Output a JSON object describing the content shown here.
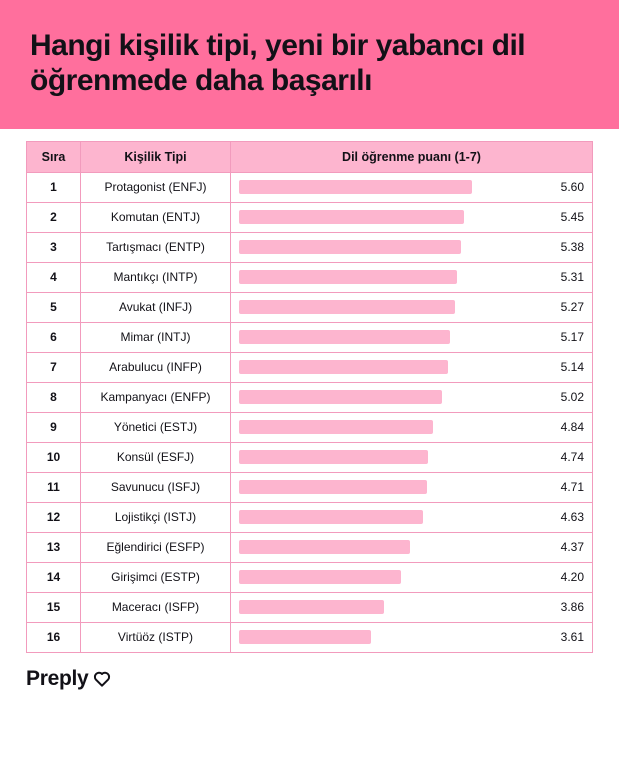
{
  "hero": {
    "title": "Hangi kişilik tipi, yeni bir yabancı dil öğrenmede daha başarılı",
    "background_color": "#ff6f9d",
    "text_color": "#121117"
  },
  "table": {
    "header_bg": "#fdb5cf",
    "border_color": "#f29bbd",
    "bar_color": "#fdb5cf",
    "columns": {
      "rank": "Sıra",
      "type": "Kişilik Tipi",
      "score": "Dil öğrenme puanı (1-7)"
    },
    "score_min": 1,
    "score_max": 7,
    "bar_max_pct": 88,
    "rows": [
      {
        "rank": "1",
        "type": "Protagonist (ENFJ)",
        "score": "5.60",
        "value": 5.6
      },
      {
        "rank": "2",
        "type": "Komutan (ENTJ)",
        "score": "5.45",
        "value": 5.45
      },
      {
        "rank": "3",
        "type": "Tartışmacı (ENTP)",
        "score": "5.38",
        "value": 5.38
      },
      {
        "rank": "4",
        "type": "Mantıkçı (INTP)",
        "score": "5.31",
        "value": 5.31
      },
      {
        "rank": "5",
        "type": "Avukat (INFJ)",
        "score": "5.27",
        "value": 5.27
      },
      {
        "rank": "6",
        "type": "Mimar (INTJ)",
        "score": "5.17",
        "value": 5.17
      },
      {
        "rank": "7",
        "type": "Arabulucu (INFP)",
        "score": "5.14",
        "value": 5.14
      },
      {
        "rank": "8",
        "type": "Kampanyacı (ENFP)",
        "score": "5.02",
        "value": 5.02
      },
      {
        "rank": "9",
        "type": "Yönetici (ESTJ)",
        "score": "4.84",
        "value": 4.84
      },
      {
        "rank": "10",
        "type": "Konsül (ESFJ)",
        "score": "4.74",
        "value": 4.74
      },
      {
        "rank": "11",
        "type": "Savunucu (ISFJ)",
        "score": "4.71",
        "value": 4.71
      },
      {
        "rank": "12",
        "type": "Lojistikçi (ISTJ)",
        "score": "4.63",
        "value": 4.63
      },
      {
        "rank": "13",
        "type": "Eğlendirici (ESFP)",
        "score": "4.37",
        "value": 4.37
      },
      {
        "rank": "14",
        "type": "Girişimci (ESTP)",
        "score": "4.20",
        "value": 4.2
      },
      {
        "rank": "15",
        "type": "Maceracı (ISFP)",
        "score": "3.86",
        "value": 3.86
      },
      {
        "rank": "16",
        "type": "Virtüöz (ISTP)",
        "score": "3.61",
        "value": 3.61
      }
    ]
  },
  "brand": {
    "name": "Preply",
    "text_color": "#121117"
  }
}
